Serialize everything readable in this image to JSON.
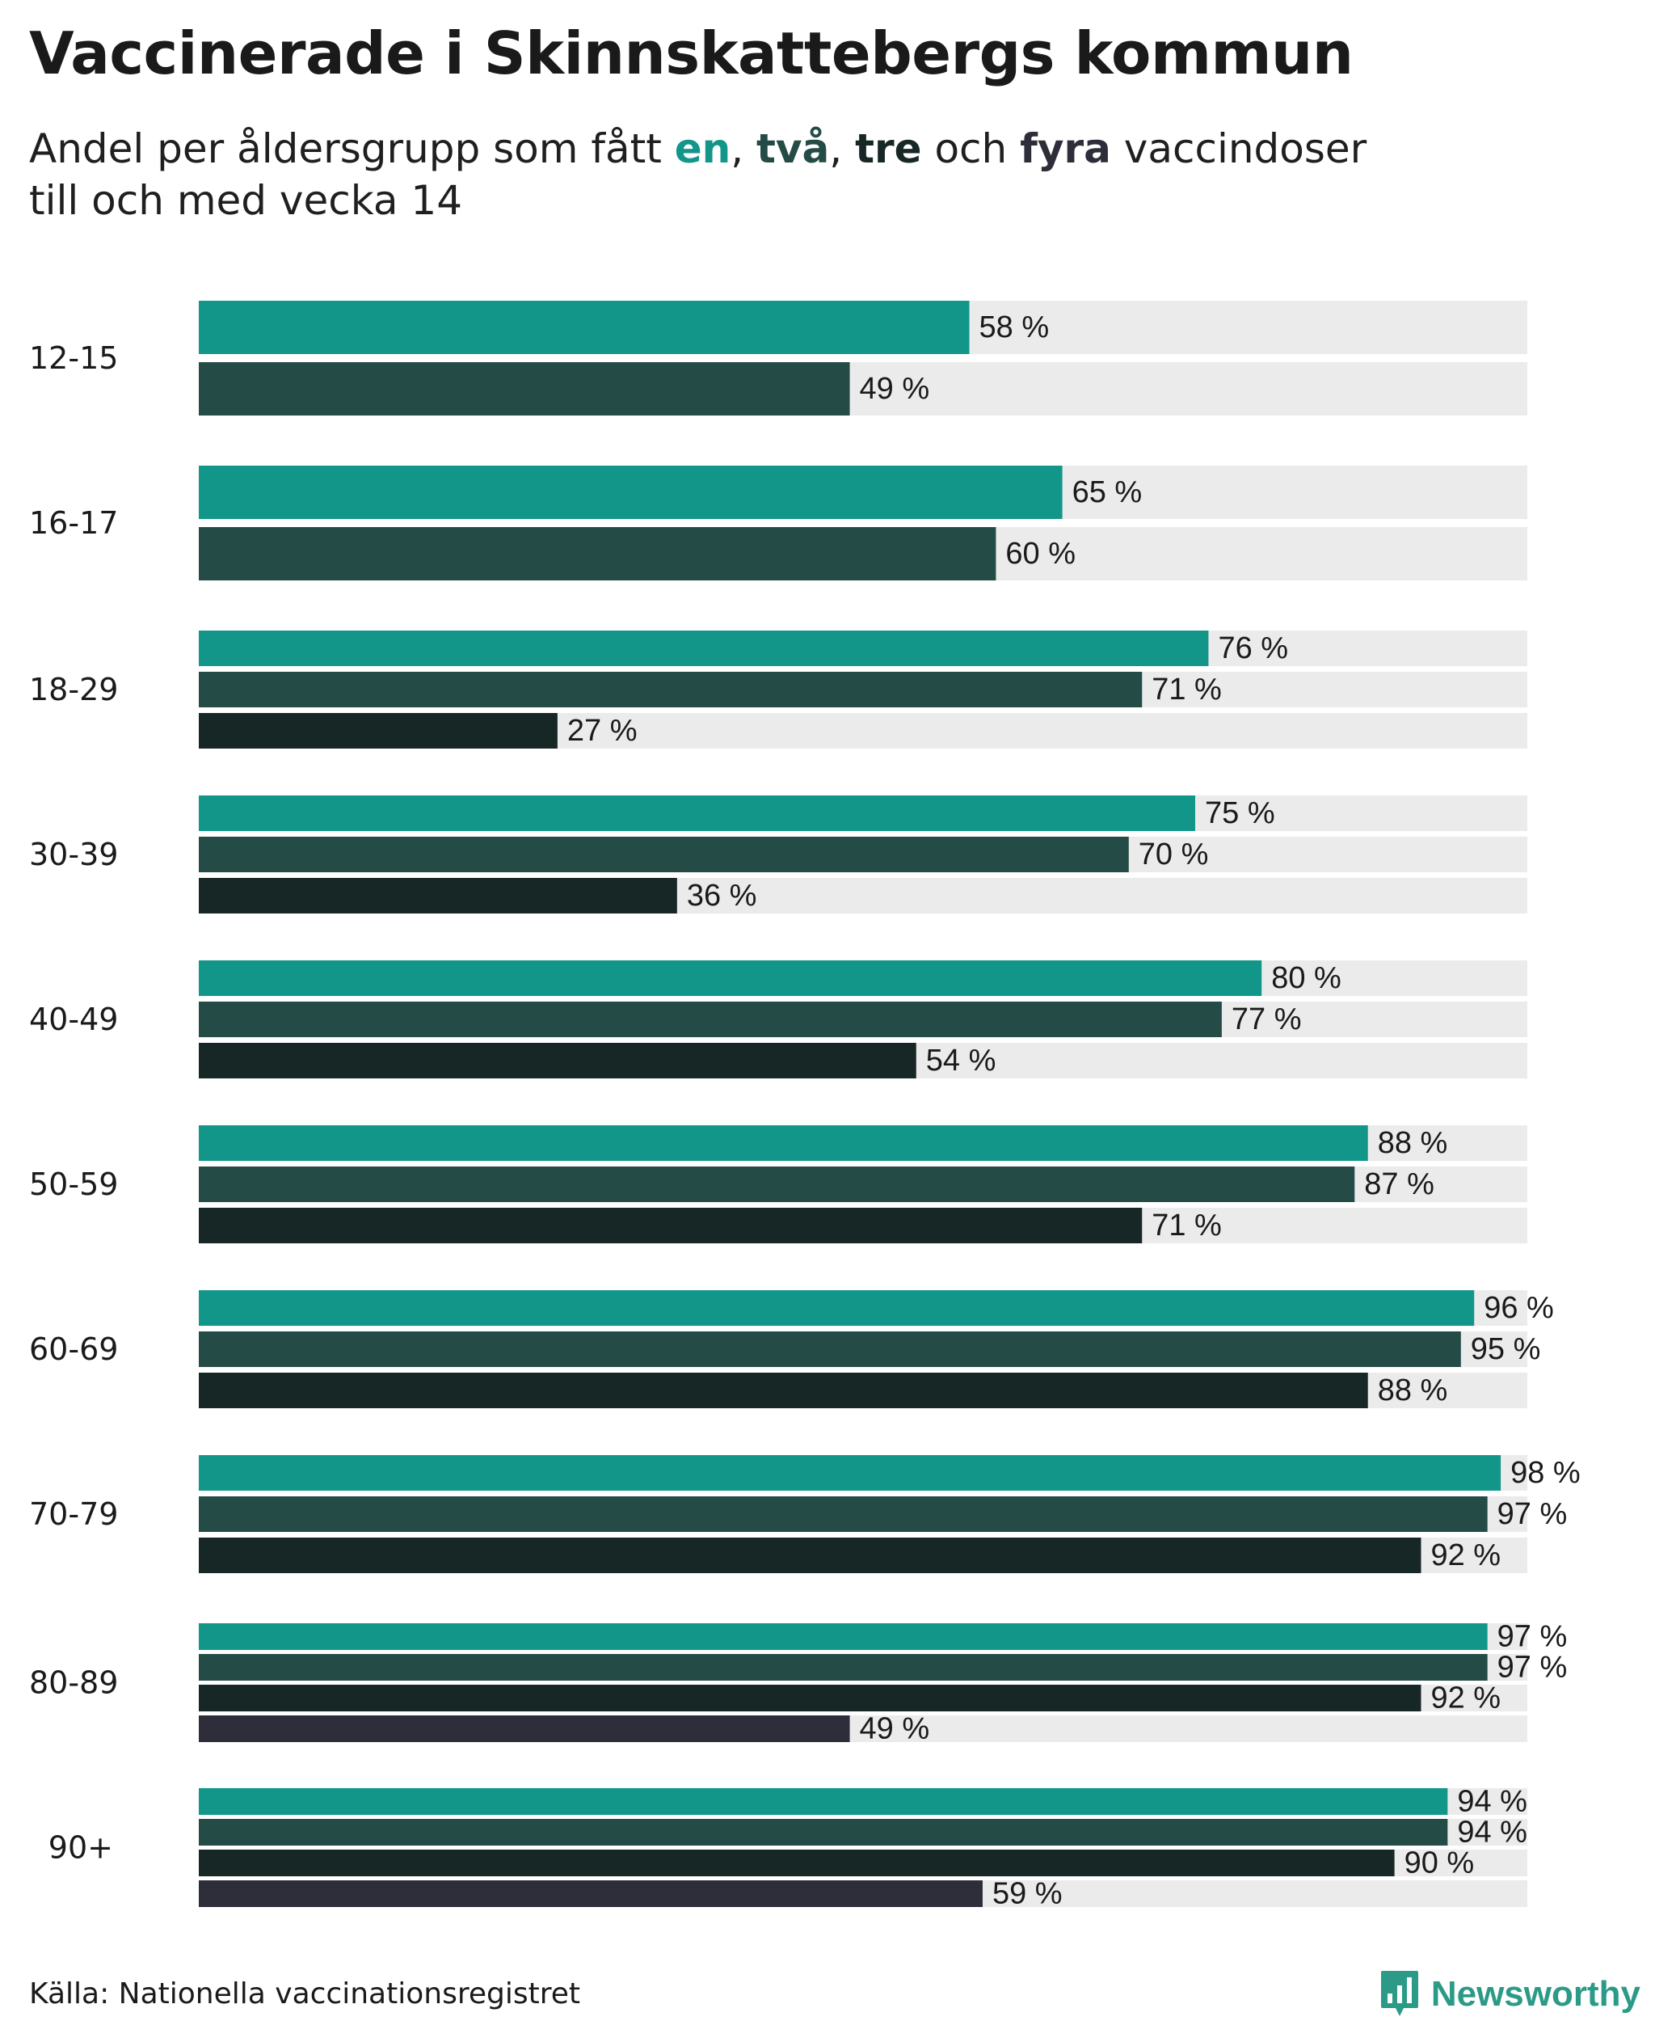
{
  "title": "Vaccinerade i Skinnskattebergs kommun",
  "subtitle": {
    "prefix": "Andel per åldersgrupp som fått ",
    "dose1": "en",
    "sep1": ", ",
    "dose2": "två",
    "sep2": ", ",
    "dose3": "tre",
    "connector": " och ",
    "dose4": "fyra",
    "suffix": " vaccindoser",
    "line2": "till och med vecka 14"
  },
  "colors": {
    "dose1": "#12968a",
    "dose2": "#254b47",
    "dose3": "#172726",
    "dose4": "#2e2e3a",
    "track": "#ebebeb"
  },
  "chart_data": {
    "type": "bar",
    "orientation": "horizontal",
    "title": "Vaccinerade i Skinnskattebergs kommun",
    "subtitle": "Andel per åldersgrupp som fått en, två, tre och fyra vaccindoser till och med vecka 14",
    "xlim": [
      0,
      100
    ],
    "unit": "%",
    "categories": [
      "12-15",
      "16-17",
      "18-29",
      "30-39",
      "40-49",
      "50-59",
      "60-69",
      "70-79",
      "80-89",
      "90+"
    ],
    "series": [
      {
        "name": "en",
        "values": [
          58,
          65,
          76,
          75,
          80,
          88,
          96,
          98,
          97,
          94
        ]
      },
      {
        "name": "två",
        "values": [
          49,
          60,
          71,
          70,
          77,
          87,
          95,
          97,
          97,
          94
        ]
      },
      {
        "name": "tre",
        "values": [
          null,
          null,
          27,
          36,
          54,
          71,
          88,
          92,
          92,
          90
        ]
      },
      {
        "name": "fyra",
        "values": [
          null,
          null,
          null,
          null,
          null,
          null,
          null,
          null,
          49,
          59
        ]
      }
    ],
    "value_labels": [
      [
        "58 %",
        "49 %"
      ],
      [
        "65 %",
        "60 %"
      ],
      [
        "76 %",
        "71 %",
        "27 %"
      ],
      [
        "75 %",
        "70 %",
        "36 %"
      ],
      [
        "80 %",
        "77 %",
        "54 %"
      ],
      [
        "88 %",
        "87 %",
        "71 %"
      ],
      [
        "96 %",
        "95 %",
        "88 %"
      ],
      [
        "98 %",
        "97 %",
        "92 %"
      ],
      [
        "97 %",
        "97 %",
        "92 %",
        "49 %"
      ],
      [
        "94 %",
        "94 %",
        "90 %",
        "59 %"
      ]
    ]
  },
  "footer": {
    "source": "Källa: Nationella vaccinationsregistret",
    "brand": "Newsworthy"
  }
}
